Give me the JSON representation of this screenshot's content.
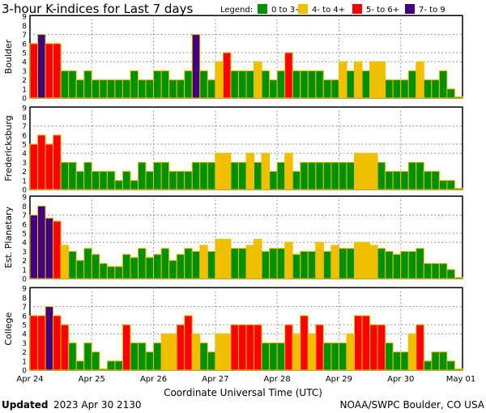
{
  "chart_data": {
    "type": "bar",
    "title": "3-hour K-indices for Last 7 days",
    "xlabel": "Coordinate Universal Time (UTC)",
    "ylim": [
      0,
      9
    ],
    "yticks": [
      "0",
      "1",
      "2",
      "3",
      "4",
      "5",
      "6",
      "7",
      "8",
      "9"
    ],
    "xticks": [
      "Apr 24",
      "Apr 25",
      "Apr 26",
      "Apr 27",
      "Apr 28",
      "Apr 29",
      "Apr 30",
      "May 01"
    ],
    "bars_per_day": 8,
    "legend": {
      "label": "Legend:",
      "entries": [
        {
          "label": "0 to 3+",
          "color": "#009000"
        },
        {
          "label": "4- to 4+",
          "color": "#f0c000"
        },
        {
          "label": "5- to 6+",
          "color": "#ff0000"
        },
        {
          "label": "7- to 9",
          "color": "#400080"
        }
      ]
    },
    "series": [
      {
        "name": "Boulder",
        "values": [
          6,
          7,
          6,
          6,
          3,
          3,
          2,
          3,
          2,
          2,
          2,
          2,
          2,
          3,
          2,
          2,
          3,
          3,
          2,
          2,
          3,
          7,
          3,
          2,
          4,
          5,
          3,
          3,
          3,
          4,
          3,
          2,
          3,
          5,
          3,
          3,
          3,
          3,
          2,
          2,
          4,
          3,
          4,
          3,
          4,
          4,
          2,
          2,
          2,
          3,
          4,
          2,
          2,
          3,
          1,
          0
        ]
      },
      {
        "name": "Fredericksburg",
        "values": [
          5,
          6,
          5,
          6,
          3,
          3,
          2,
          3,
          2,
          2,
          2,
          1,
          2,
          1,
          3,
          2,
          3,
          3,
          2,
          2,
          2,
          3,
          3,
          3,
          4,
          4,
          3,
          3,
          4,
          3,
          4,
          2,
          3,
          4,
          2,
          3,
          3,
          3,
          3,
          3,
          3,
          3,
          4,
          4,
          4,
          3,
          2,
          2,
          2,
          3,
          3,
          2,
          2,
          1,
          1,
          0
        ]
      },
      {
        "name": "Est. Planetary",
        "values": [
          7,
          8,
          6.67,
          6.33,
          3.67,
          3,
          2,
          3.33,
          2.67,
          1.67,
          1.33,
          1.33,
          2.67,
          2.33,
          3.33,
          2.33,
          2.67,
          3.33,
          2,
          2.67,
          3.33,
          3,
          3.67,
          3,
          4.33,
          4.33,
          3.33,
          3.33,
          3.67,
          4.33,
          3,
          3.33,
          3.33,
          4,
          2.67,
          3,
          3,
          4,
          3,
          3.67,
          3.33,
          3.33,
          4,
          4,
          3.67,
          3.33,
          3,
          2.67,
          3,
          3,
          3.33,
          1.67,
          1.67,
          1.67,
          1,
          0
        ]
      },
      {
        "name": "College",
        "values": [
          6,
          6,
          7,
          6,
          5,
          3,
          1,
          3,
          2,
          0,
          1,
          1,
          5,
          3,
          3,
          2,
          3,
          4,
          4,
          5,
          6,
          4,
          3,
          2,
          4,
          4,
          5,
          5,
          5,
          5,
          3,
          3,
          3,
          5,
          4,
          6,
          4,
          5,
          3,
          3,
          3,
          4,
          6,
          6,
          5,
          5,
          3,
          2,
          2,
          4,
          5,
          1,
          2,
          2,
          1,
          0
        ]
      }
    ]
  },
  "footer": {
    "updated_label": "Updated",
    "updated_value": "2023 Apr 30 2130",
    "credit": "NOAA/SWPC Boulder, CO USA"
  }
}
